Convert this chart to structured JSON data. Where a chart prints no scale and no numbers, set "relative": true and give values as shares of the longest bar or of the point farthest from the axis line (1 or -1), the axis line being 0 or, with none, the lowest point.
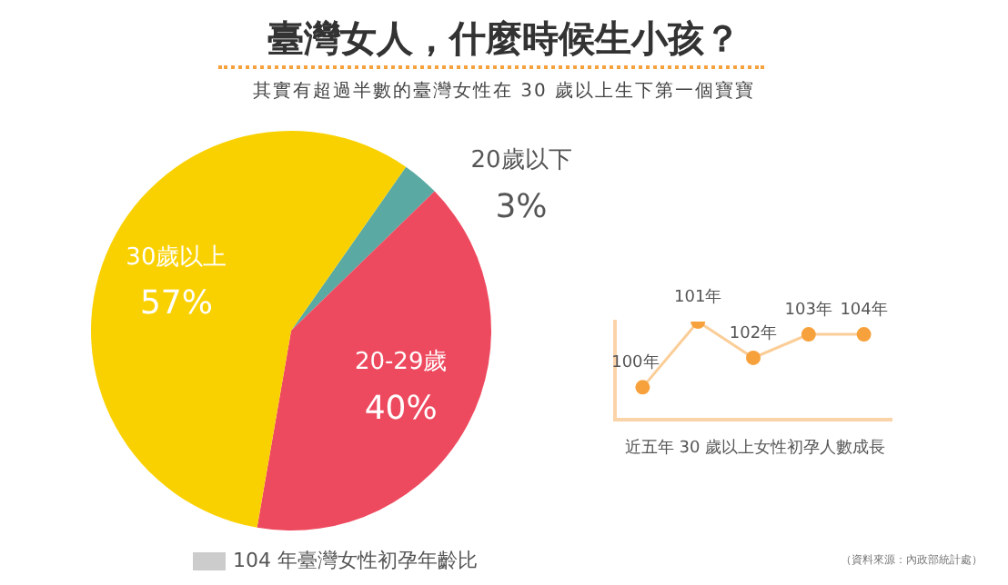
{
  "chart_data": [
    {
      "type": "pie",
      "title": "臺灣女人，什麼時候生小孩？",
      "subtitle": "其實有超過半數的臺灣女性在 30 歲以上生下第一個寶寶",
      "categories": [
        "20歲以下",
        "20-29歲",
        "30歲以上"
      ],
      "values": [
        3,
        40,
        57
      ],
      "colors": [
        "#5aa9a3",
        "#ee4a5f",
        "#fad100"
      ],
      "value_labels": [
        "3%",
        "40%",
        "57%"
      ],
      "xlabel": "104 年臺灣女性初孕年齡比",
      "annotations": [
        "（資料來源：內政部統計處）"
      ],
      "legend": false
    },
    {
      "type": "line",
      "relative": true,
      "categories": [
        "100年",
        "101年",
        "102年",
        "103年",
        "104年"
      ],
      "series": [
        {
          "color": "#f7a13c",
          "values": [
            0.33,
            1,
            0.63,
            0.87,
            0.87
          ]
        }
      ],
      "xlabel": "近五年 30 歲以上女性初孕人數成長",
      "marker": "circle",
      "tick_labels": false,
      "grid": false,
      "legend": false
    }
  ]
}
